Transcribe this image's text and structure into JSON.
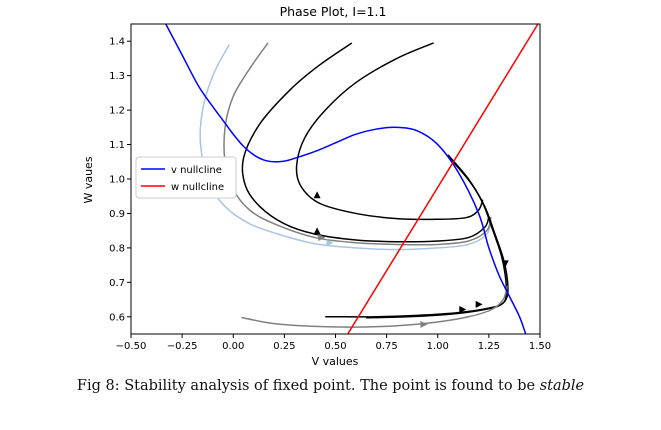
{
  "chart_data": {
    "type": "line",
    "title": "Phase Plot, I=1.1",
    "xlabel": "V values",
    "ylabel": "W vaues",
    "xlim": [
      -0.5,
      1.5
    ],
    "ylim": [
      0.55,
      1.45
    ],
    "xticks": [
      "−0.50",
      "−0.25",
      "0.00",
      "0.25",
      "0.50",
      "0.75",
      "1.00",
      "1.25",
      "1.50"
    ],
    "xtick_values": [
      -0.5,
      -0.25,
      0.0,
      0.25,
      0.5,
      0.75,
      1.0,
      1.25,
      1.5
    ],
    "yticks": [
      "0.6",
      "0.7",
      "0.8",
      "0.9",
      "1.0",
      "1.1",
      "1.2",
      "1.3",
      "1.4"
    ],
    "ytick_values": [
      0.6,
      0.7,
      0.8,
      0.9,
      1.0,
      1.1,
      1.2,
      1.3,
      1.4
    ],
    "legend_position": "center-left",
    "nullclines": [
      {
        "name": "v nullcline",
        "color": "#0000ff",
        "x": [
          -0.33,
          -0.25,
          -0.17,
          -0.1,
          -0.05,
          0.0,
          0.05,
          0.1,
          0.15,
          0.2,
          0.25,
          0.3,
          0.4,
          0.5,
          0.6,
          0.7,
          0.8,
          0.9,
          1.0,
          1.1,
          1.2,
          1.25,
          1.3,
          1.35,
          1.4,
          1.43
        ],
        "y": [
          1.45,
          1.36,
          1.27,
          1.21,
          1.17,
          1.13,
          1.095,
          1.07,
          1.055,
          1.05,
          1.052,
          1.06,
          1.08,
          1.105,
          1.13,
          1.145,
          1.15,
          1.14,
          1.1,
          1.02,
          0.9,
          0.8,
          0.72,
          0.66,
          0.6,
          0.55
        ]
      },
      {
        "name": "w nullcline",
        "color": "#ff0000",
        "x": [
          0.56,
          1.49
        ],
        "y": [
          0.55,
          1.45
        ]
      }
    ],
    "trajectories": [
      {
        "color": "#aac4e4",
        "x": [
          -0.02,
          -0.1,
          -0.15,
          -0.16,
          -0.12,
          -0.04,
          0.08,
          0.22,
          0.4,
          0.6,
          0.8,
          1.0,
          1.15,
          1.24,
          1.26
        ],
        "y": [
          1.39,
          1.3,
          1.2,
          1.1,
          0.99,
          0.92,
          0.87,
          0.84,
          0.812,
          0.8,
          0.795,
          0.8,
          0.81,
          0.84,
          0.88
        ]
      },
      {
        "color": "#808080",
        "x": [
          0.17,
          0.08,
          0.0,
          -0.04,
          -0.04,
          0.0,
          0.08,
          0.2,
          0.4,
          0.6,
          0.8,
          1.0,
          1.15,
          1.24,
          1.26
        ],
        "y": [
          1.395,
          1.32,
          1.24,
          1.15,
          1.05,
          0.97,
          0.91,
          0.87,
          0.83,
          0.815,
          0.81,
          0.81,
          0.82,
          0.85,
          0.89
        ]
      },
      {
        "color": "#000000",
        "x": [
          0.58,
          0.42,
          0.28,
          0.13,
          0.05,
          0.06,
          0.13,
          0.25,
          0.4,
          0.6,
          0.8,
          1.0,
          1.15,
          1.23,
          1.25
        ],
        "y": [
          1.395,
          1.33,
          1.26,
          1.16,
          1.06,
          0.98,
          0.92,
          0.87,
          0.84,
          0.823,
          0.818,
          0.82,
          0.83,
          0.86,
          0.89
        ]
      },
      {
        "color": "#000000",
        "x": [
          0.98,
          0.8,
          0.6,
          0.45,
          0.35,
          0.31,
          0.33,
          0.42,
          0.6,
          0.8,
          1.0,
          1.14,
          1.2,
          1.22
        ],
        "y": [
          1.395,
          1.35,
          1.28,
          1.2,
          1.12,
          1.04,
          0.98,
          0.93,
          0.9,
          0.885,
          0.883,
          0.888,
          0.91,
          0.94
        ]
      },
      {
        "color": "#000000",
        "x": [
          1.05,
          1.15,
          1.22,
          1.27,
          1.31,
          1.33,
          1.335,
          1.32,
          1.25,
          1.1,
          0.9,
          0.7,
          0.55,
          0.45
        ],
        "y": [
          1.07,
          1.0,
          0.93,
          0.85,
          0.78,
          0.72,
          0.67,
          0.64,
          0.625,
          0.612,
          0.604,
          0.6,
          0.6,
          0.6
        ]
      },
      {
        "color": "#000000",
        "x": [
          1.06,
          1.16,
          1.23,
          1.28,
          1.32,
          1.34,
          1.34,
          1.3,
          1.2,
          1.05,
          0.85,
          0.65
        ],
        "y": [
          1.06,
          0.99,
          0.92,
          0.84,
          0.77,
          0.71,
          0.66,
          0.632,
          0.618,
          0.607,
          0.6,
          0.597
        ]
      },
      {
        "color": "#808080",
        "x": [
          0.04,
          0.2,
          0.4,
          0.6,
          0.8,
          1.0,
          1.15,
          1.26,
          1.32,
          1.34
        ],
        "y": [
          0.598,
          0.58,
          0.572,
          0.57,
          0.574,
          0.585,
          0.6,
          0.62,
          0.65,
          0.69
        ]
      }
    ],
    "arrows": [
      {
        "x": 0.41,
        "y": 0.953,
        "dir": "up",
        "color": "#000000"
      },
      {
        "x": 0.41,
        "y": 0.848,
        "dir": "up",
        "color": "#000000"
      },
      {
        "x": 0.43,
        "y": 0.83,
        "dir": "right",
        "color": "#808080"
      },
      {
        "x": 0.47,
        "y": 0.815,
        "dir": "right",
        "color": "#aac4e4"
      },
      {
        "x": 1.33,
        "y": 0.755,
        "dir": "down",
        "color": "#000000"
      },
      {
        "x": 1.12,
        "y": 0.621,
        "dir": "right",
        "color": "#000000"
      },
      {
        "x": 1.2,
        "y": 0.636,
        "dir": "right",
        "color": "#000000"
      },
      {
        "x": 0.93,
        "y": 0.578,
        "dir": "right",
        "color": "#808080"
      }
    ]
  },
  "caption": {
    "prefix": "Fig 8: Stability analysis of fixed point. The point is found to be",
    "emphasis": "stable"
  }
}
